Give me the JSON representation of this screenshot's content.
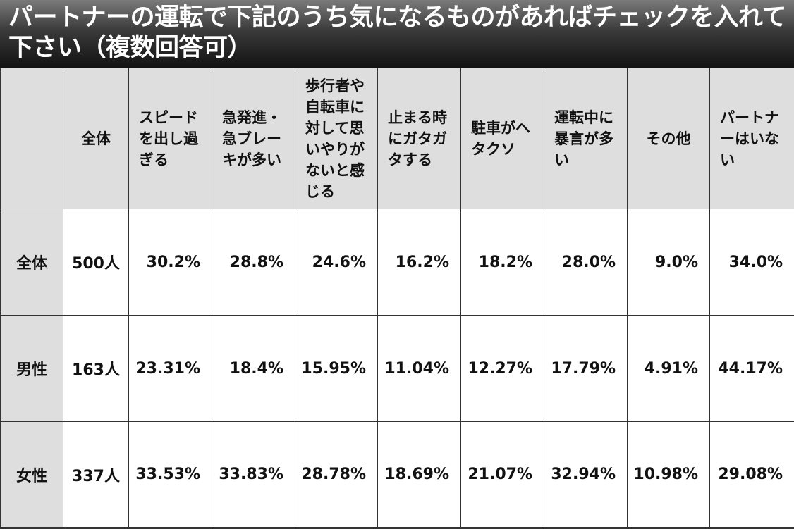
{
  "title": "パートナーの運転で下記のうち気になるものがあればチェックを入れて下さい（複数回答可）",
  "header": {
    "corner": "",
    "columns": [
      "全体",
      "スピードを出し過ぎる",
      "急発進・急ブレーキが多い",
      "歩行者や自転車に対して思いやりがないと感じる",
      "止まる時にガタガタする",
      "駐車がヘタクソ",
      "運転中に暴言が多い",
      "その他",
      "パートナーはいない"
    ]
  },
  "rows": [
    {
      "label": "全体",
      "count": "500人",
      "values": [
        "30.2%",
        "28.8%",
        "24.6%",
        "16.2%",
        "18.2%",
        "28.0%",
        "9.0%",
        "34.0%"
      ]
    },
    {
      "label": "男性",
      "count": "163人",
      "values": [
        "23.31%",
        "18.4%",
        "15.95%",
        "11.04%",
        "12.27%",
        "17.79%",
        "4.91%",
        "44.17%"
      ]
    },
    {
      "label": "女性",
      "count": "337人",
      "values": [
        "33.53%",
        "33.83%",
        "28.78%",
        "18.69%",
        "21.07%",
        "32.94%",
        "10.98%",
        "29.08%"
      ]
    }
  ],
  "chart_data": {
    "type": "table",
    "title": "パートナーの運転で下記のうち気になるものがあればチェックを入れて下さい（複数回答可）",
    "columns": [
      "全体",
      "スピードを出し過ぎる",
      "急発進・急ブレーキが多い",
      "歩行者や自転車に対して思いやりがないと感じる",
      "止まる時にガタガタする",
      "駐車がヘタクソ",
      "運転中に暴言が多い",
      "その他",
      "パートナーはいない"
    ],
    "row_labels": [
      "全体",
      "男性",
      "女性"
    ],
    "cells": [
      [
        "500人",
        "30.2%",
        "28.8%",
        "24.6%",
        "16.2%",
        "18.2%",
        "28.0%",
        "9.0%",
        "34.0%"
      ],
      [
        "163人",
        "23.31%",
        "18.4%",
        "15.95%",
        "11.04%",
        "12.27%",
        "17.79%",
        "4.91%",
        "44.17%"
      ],
      [
        "337人",
        "33.53%",
        "33.83%",
        "28.78%",
        "18.69%",
        "21.07%",
        "32.94%",
        "10.98%",
        "29.08%"
      ]
    ]
  },
  "colors": {
    "title_bg_top": "#7a7a7a",
    "title_bg_bottom": "#121212",
    "title_text": "#ffffff",
    "header_bg": "#dedede",
    "border": "#333333"
  }
}
